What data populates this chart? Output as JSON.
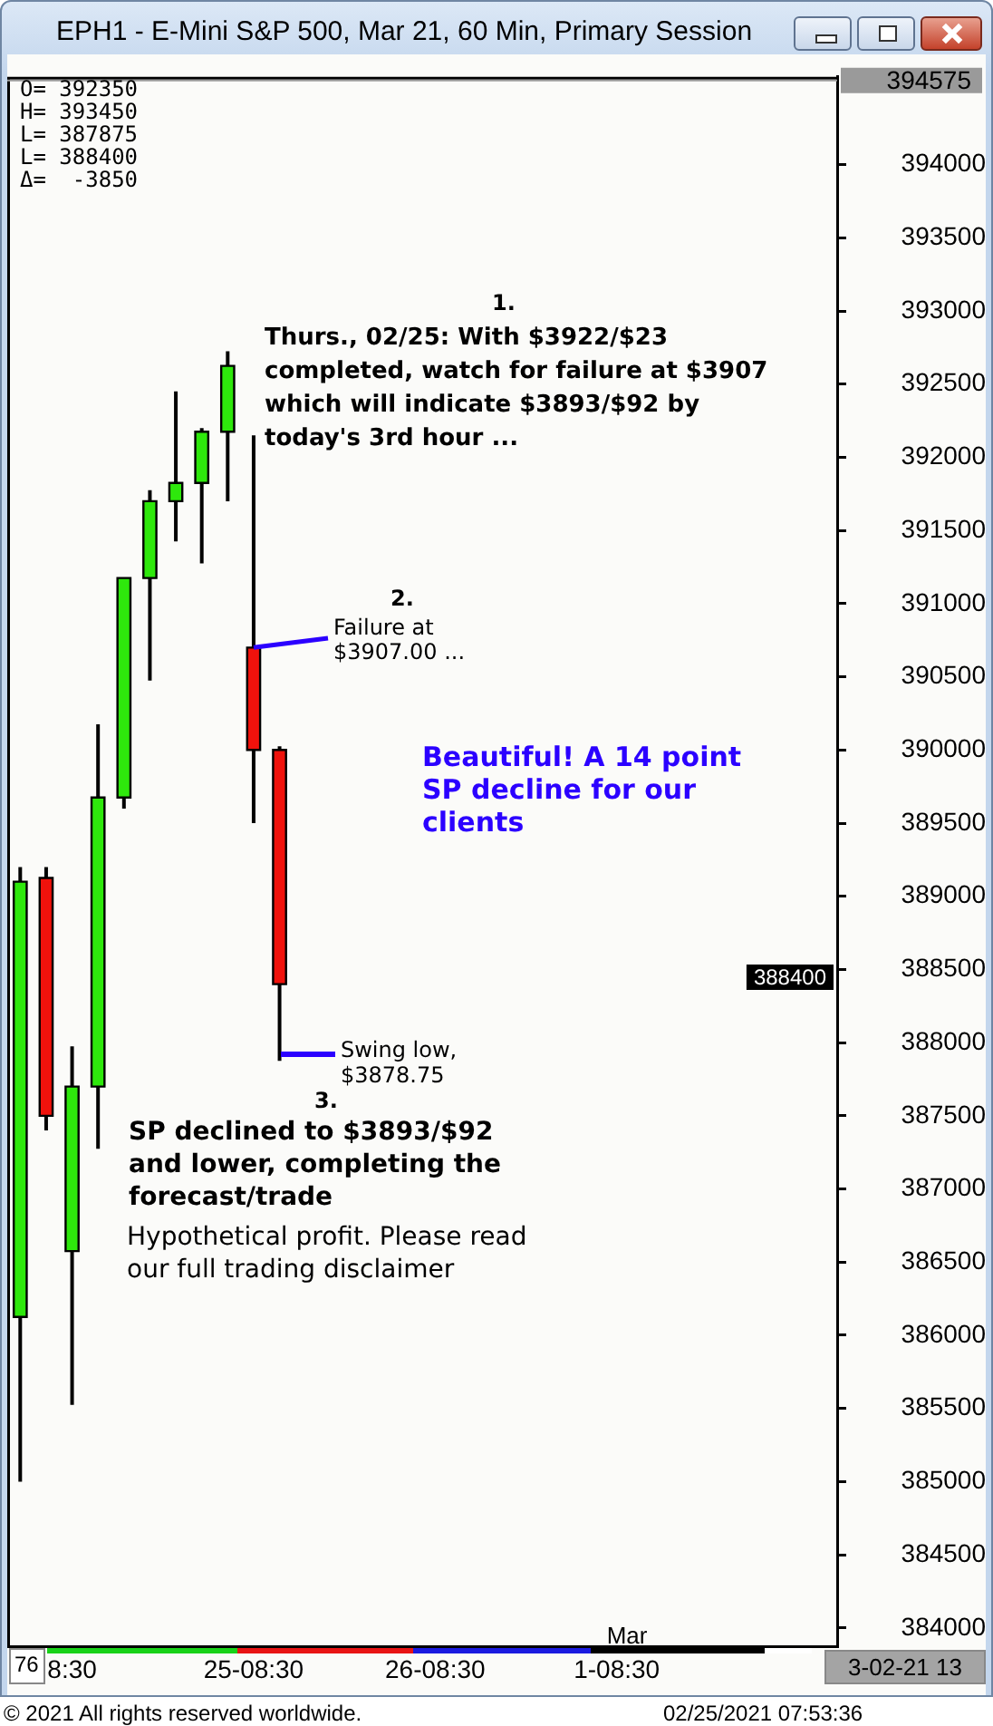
{
  "chart_data": {
    "type": "candlestick",
    "title": "EPH1 - E-Mini S&P 500, Mar 21, 60 Min, Primary Session",
    "categories": [
      null,
      null,
      "8:30",
      null,
      null,
      null,
      null,
      null,
      null,
      "25-08:30",
      null,
      null,
      null,
      null,
      null,
      null,
      "26-08:30",
      null,
      null,
      null,
      null,
      null,
      null,
      "1-08:30",
      null,
      null,
      null,
      null,
      null,
      null,
      null,
      null
    ],
    "ohlc": [
      [
        386125,
        389200,
        385000,
        389100
      ],
      [
        389125,
        389200,
        387400,
        387500
      ],
      [
        386575,
        387975,
        385525,
        387700
      ],
      [
        387700,
        390175,
        387275,
        389675
      ],
      [
        389675,
        391175,
        389600,
        391175
      ],
      [
        391175,
        391775,
        390475,
        391700
      ],
      [
        391700,
        392450,
        391425,
        391825
      ],
      [
        391825,
        392200,
        391275,
        392175
      ],
      [
        392175,
        392725,
        391700,
        392625
      ],
      [
        390700,
        392150,
        389500,
        390000
      ],
      [
        390000,
        390025,
        387875,
        388400
      ],
      null,
      null,
      null,
      null,
      null,
      null,
      null,
      null,
      null,
      null,
      null,
      null,
      null,
      null,
      null,
      null,
      null,
      null,
      null,
      null,
      null
    ],
    "colors": [
      "#2ee80c",
      "#f0120c",
      "#2ee80c",
      "#2ee80c",
      "#2ee80c",
      "#2ee80c",
      "#2ee80c",
      "#2ee80c",
      "#2ee80c",
      "#f0120c",
      "#f0120c",
      null,
      null,
      null,
      null,
      null,
      null,
      null,
      null,
      null,
      null,
      null,
      null,
      null,
      null,
      null,
      null,
      null,
      null,
      null,
      null,
      null
    ],
    "ylim": [
      383875,
      394600
    ],
    "yticks": [
      384000,
      384500,
      385000,
      385500,
      386000,
      386500,
      387000,
      387500,
      388000,
      388500,
      389000,
      389500,
      390000,
      390500,
      391000,
      391500,
      392000,
      392500,
      393000,
      393500,
      394000
    ],
    "ref_lines": [
      {
        "axis": "y",
        "value": 394575,
        "label": "394575",
        "color": "#9a9a9a"
      }
    ],
    "annotations": [
      "1.",
      "Thurs., 02/25: With $3922/$23 completed, watch for failure at $3907 which will indicate $3893/$92 by today's 3rd hour ...",
      "2.",
      {
        "text": "Failure at $3907.00 ...",
        "x": "25-08:30",
        "y": 390700
      },
      "Swing low, $3878.75",
      "3.",
      "Beautiful! A 14 point SP decline for our clients",
      "SP declined to $3893/$92 and lower, completing the forecast/trade",
      "Hypothetical profit. Please read our full trading disclaimer",
      "O= 392350",
      "H= 393450",
      "L= 387875",
      "L= 388400",
      "Δ=  -3850",
      "388400",
      "Mar",
      "76",
      "3-02-21 13",
      "© 2021 All rights reserved worldwide.",
      "02/25/2021 07:53:36"
    ]
  }
}
